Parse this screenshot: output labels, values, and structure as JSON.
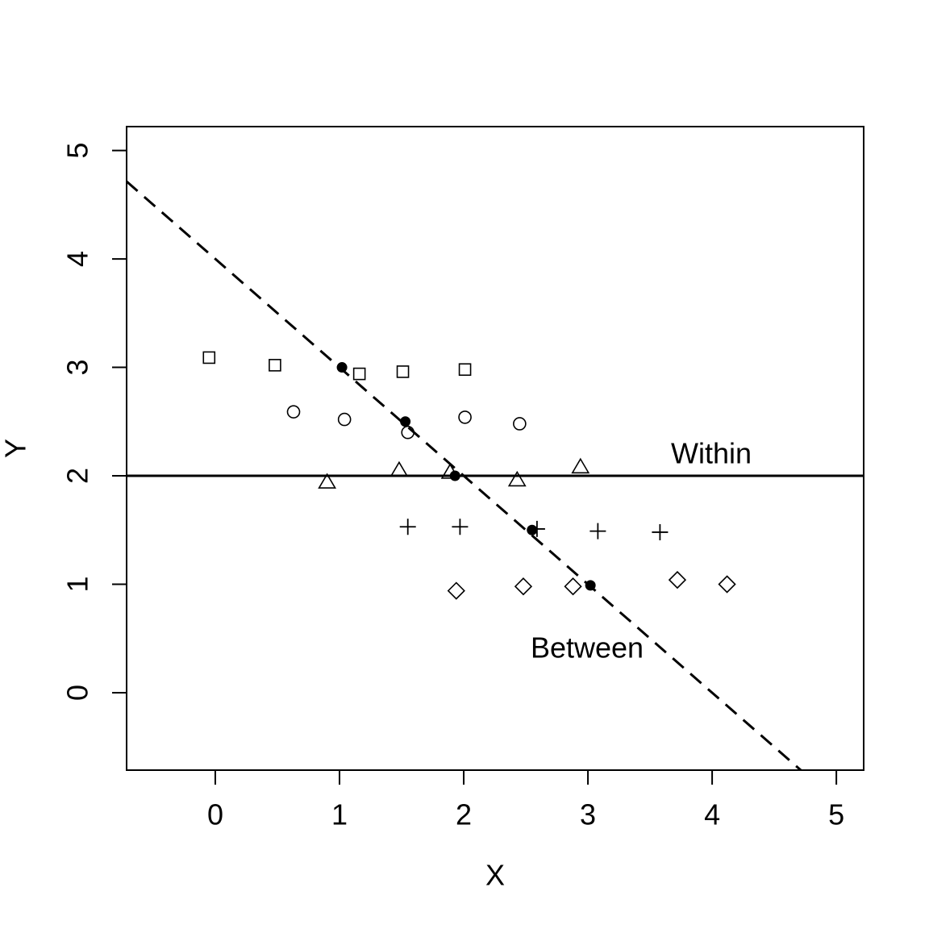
{
  "chart_data": {
    "type": "scatter",
    "xlabel": "X",
    "ylabel": "Y",
    "xlim": [
      -0.714,
      5.22
    ],
    "ylim": [
      -0.714,
      5.22
    ],
    "xticks": [
      0,
      1,
      2,
      3,
      4,
      5
    ],
    "yticks": [
      0,
      1,
      2,
      3,
      4,
      5
    ],
    "series": [
      {
        "marker": "square",
        "color": "#000000",
        "x": [
          -0.05,
          0.48,
          1.16,
          1.51,
          2.01
        ],
        "values": [
          3.09,
          3.02,
          2.94,
          2.96,
          2.98
        ]
      },
      {
        "marker": "circle",
        "color": "#000000",
        "x": [
          0.63,
          1.04,
          1.55,
          2.01,
          2.45
        ],
        "values": [
          2.59,
          2.52,
          2.4,
          2.54,
          2.48
        ]
      },
      {
        "marker": "triangle",
        "color": "#000000",
        "x": [
          0.9,
          1.48,
          1.89,
          2.43,
          2.94
        ],
        "values": [
          1.94,
          2.05,
          2.03,
          1.96,
          2.08
        ]
      },
      {
        "marker": "plus",
        "color": "#000000",
        "x": [
          1.55,
          1.97,
          2.59,
          3.08,
          3.58
        ],
        "values": [
          1.53,
          1.53,
          1.51,
          1.49,
          1.48
        ]
      },
      {
        "marker": "diamond",
        "color": "#000000",
        "x": [
          1.94,
          2.48,
          2.88,
          3.72,
          4.12
        ],
        "values": [
          0.94,
          0.98,
          0.98,
          1.04,
          1.0
        ]
      },
      {
        "marker": "dot",
        "color": "#000000",
        "x": [
          1.02,
          1.53,
          1.93,
          2.55,
          3.02
        ],
        "values": [
          3.0,
          2.5,
          2.0,
          1.5,
          0.99
        ]
      }
    ],
    "lines": [
      {
        "label": "Within",
        "intercept": 2,
        "slope": 0,
        "dashed": false
      },
      {
        "label": "Between",
        "intercept": 4,
        "slope": -1,
        "dashed": true
      }
    ]
  }
}
